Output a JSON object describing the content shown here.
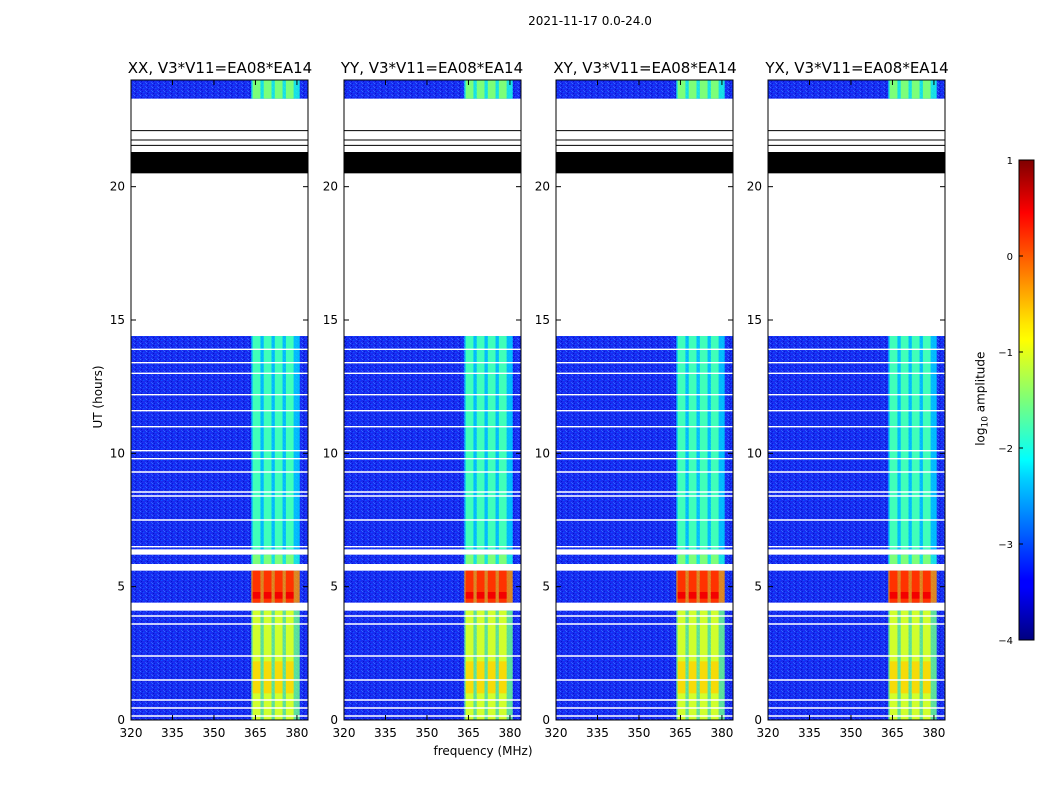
{
  "figure_title": "2021-11-17 0.0-24.0",
  "chart_data": {
    "type": "heatmap",
    "title": "2021-11-17 0.0-24.0",
    "xlabel": "frequency (MHz)",
    "ylabel": "UT (hours)",
    "xlim": [
      320,
      384
    ],
    "ylim": [
      0,
      24
    ],
    "xticks": [
      "320",
      "335",
      "350",
      "365",
      "380"
    ],
    "yticks": [
      "0",
      "5",
      "10",
      "15",
      "20"
    ],
    "panels": [
      {
        "title": "XX, V3*V11=EA08*EA14"
      },
      {
        "title": "YY, V3*V11=EA08*EA14"
      },
      {
        "title": "XY, V3*V11=EA08*EA14"
      },
      {
        "title": "YX, V3*V11=EA08*EA14"
      }
    ],
    "colorbar": {
      "label": "log10 amplitude",
      "label_base": "log",
      "label_sub": "10",
      "label_rest": " amplitude",
      "range": [
        -4,
        1
      ],
      "ticks": [
        "1",
        "0",
        "−1",
        "−2",
        "−3",
        "−4"
      ],
      "colormap": "jet"
    },
    "data_regions_hours": [
      {
        "from": 0.0,
        "to": 4.1,
        "level": -1.1
      },
      {
        "from": 4.4,
        "to": 5.6,
        "level": 0.2
      },
      {
        "from": 5.85,
        "to": 6.2,
        "level": -1.5
      },
      {
        "from": 6.4,
        "to": 14.4,
        "level": -1.8
      },
      {
        "from": 23.3,
        "to": 24.0,
        "level": -1.5
      }
    ],
    "flagged_black_band_hours": [
      20.5,
      21.3
    ],
    "bright_channels_MHz": [
      364,
      368,
      372,
      376,
      380
    ]
  }
}
